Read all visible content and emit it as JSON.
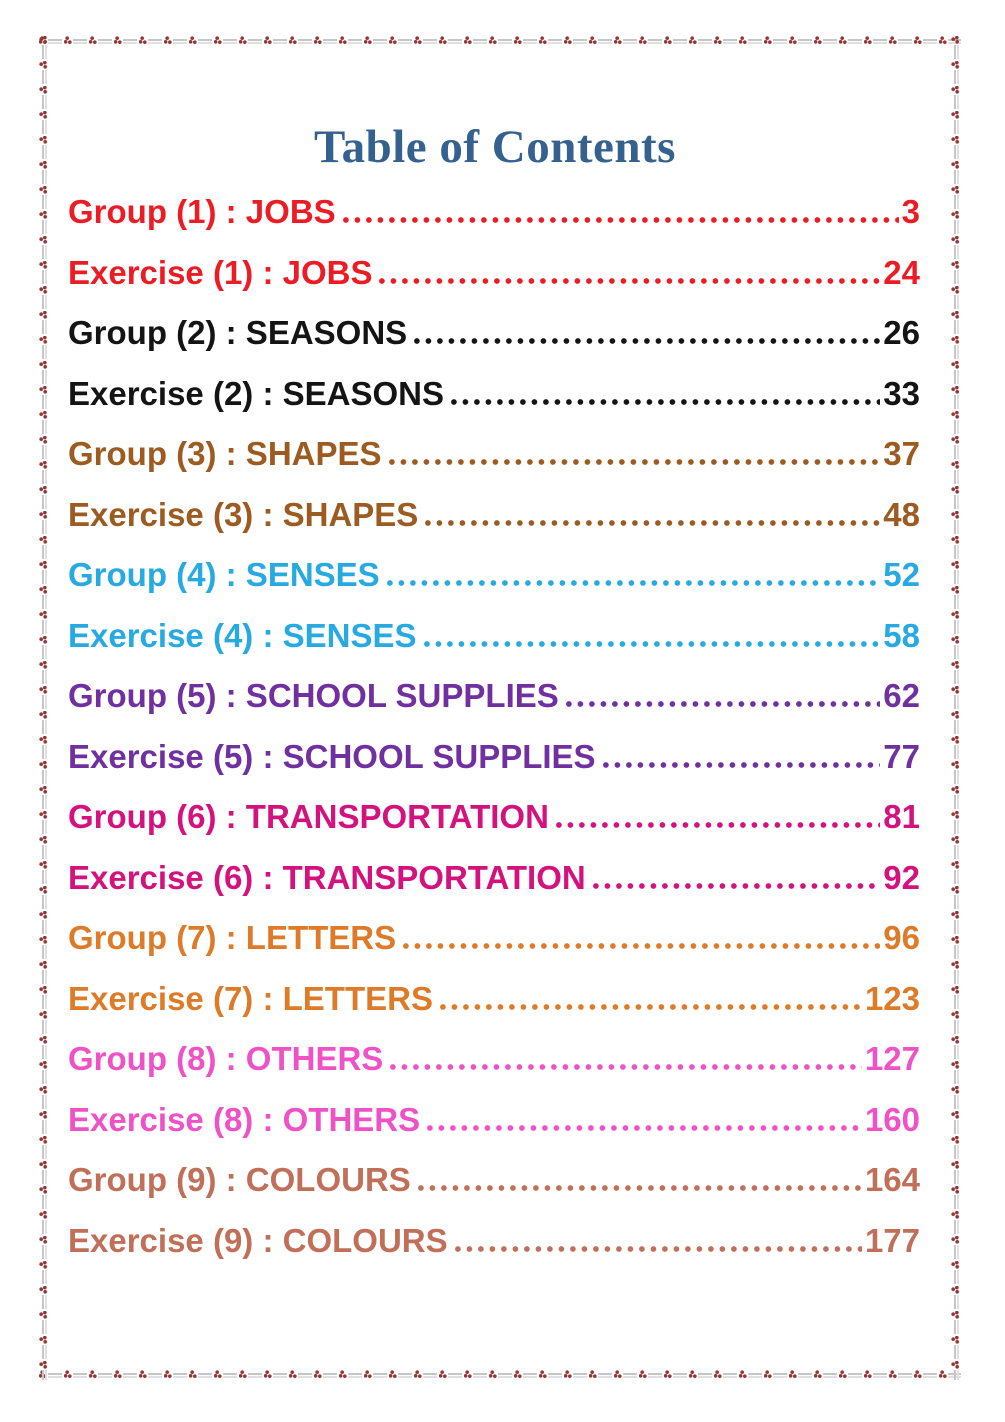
{
  "page": {
    "title": "Table of Contents",
    "title_color": "#35618E",
    "background_color": "#FFFFFF",
    "border": {
      "style": "dashed line with three-dot floral clusters",
      "line_color": "#C6C6C6",
      "motif_color": "#943634"
    }
  },
  "toc": {
    "entries": [
      {
        "label": "Group (1) : JOBS",
        "page": "3",
        "color": "#EC1C24"
      },
      {
        "label": "Exercise (1) : JOBS",
        "page": "24",
        "color": "#EC1C24"
      },
      {
        "label": "Group (2) : SEASONS",
        "page": "26",
        "color": "#141414"
      },
      {
        "label": "Exercise (2) : SEASONS",
        "page": "33",
        "color": "#141414"
      },
      {
        "label": "Group (3) : SHAPES",
        "page": "37",
        "color": "#9C5B20"
      },
      {
        "label": "Exercise (3) : SHAPES",
        "page": "48",
        "color": "#9C5B20"
      },
      {
        "label": "Group (4) : SENSES",
        "page": "52",
        "color": "#27A9E1"
      },
      {
        "label": "Exercise (4) : SENSES",
        "page": "58",
        "color": "#27A9E1"
      },
      {
        "label": "Group (5) : SCHOOL SUPPLIES",
        "page": "62",
        "color": "#7030A0"
      },
      {
        "label": "Exercise (5) : SCHOOL SUPPLIES",
        "page": "77",
        "color": "#7030A0"
      },
      {
        "label": "Group (6) : TRANSPORTATION",
        "page": "81",
        "color": "#D4127E"
      },
      {
        "label": "Exercise (6) : TRANSPORTATION",
        "page": "92",
        "color": "#D4127E"
      },
      {
        "label": "Group (7) : LETTERS",
        "page": "96",
        "color": "#DD7B29"
      },
      {
        "label": "Exercise (7) : LETTERS",
        "page": "123",
        "color": "#DD7B29"
      },
      {
        "label": "Group (8) : OTHERS",
        "page": "127",
        "color": "#EF52C6"
      },
      {
        "label": "Exercise (8) : OTHERS",
        "page": "160",
        "color": "#EF52C6"
      },
      {
        "label": "Group (9) : COLOURS",
        "page": "164",
        "color": "#C06F58"
      },
      {
        "label": "Exercise (9) : COLOURS",
        "page": "177",
        "color": "#C06F58"
      }
    ]
  }
}
